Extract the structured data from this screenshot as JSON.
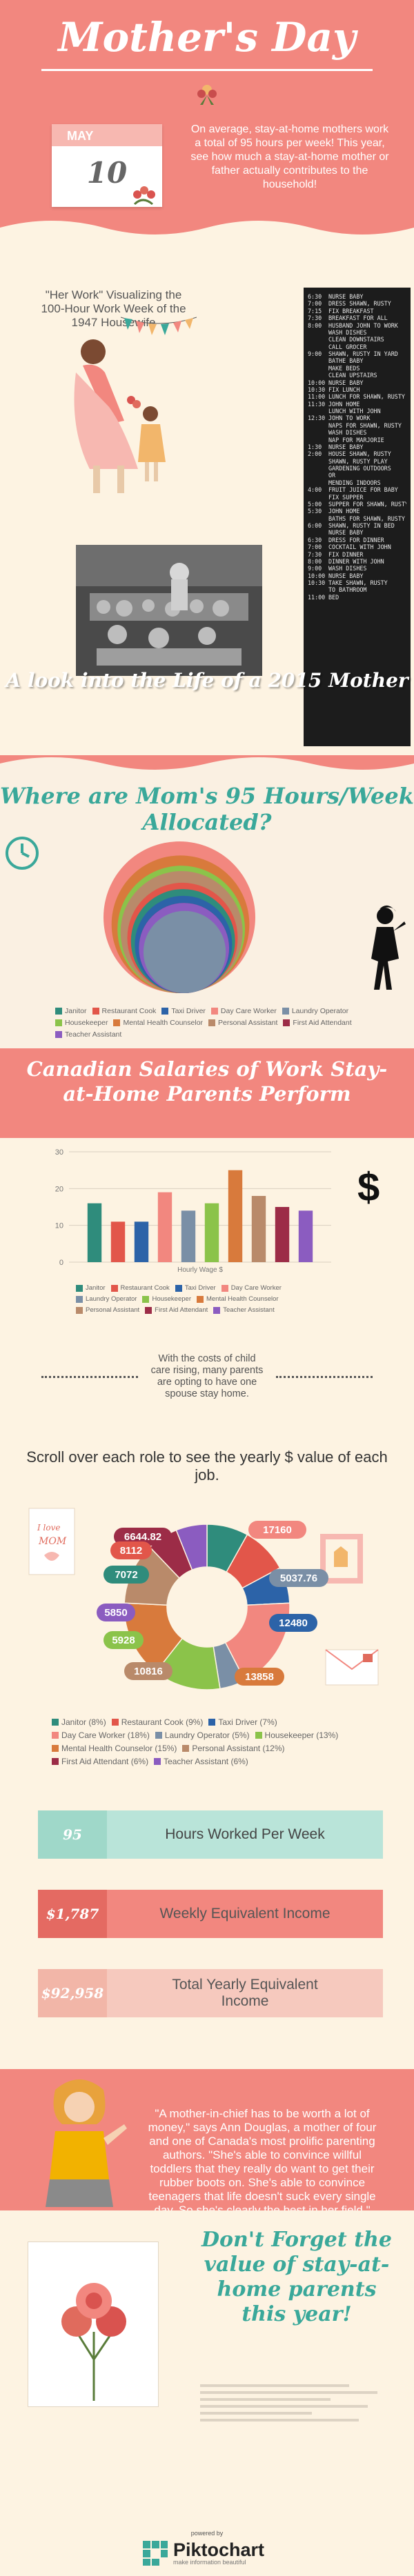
{
  "header": {
    "title": "Mother's Day",
    "calendar_month": "MAY",
    "calendar_day": "10",
    "intro": "On average, stay-at-home mothers work a total of 95 hours per week! This year, see how much a stay-at-home mother or father actually contributes to the household!"
  },
  "workweek": {
    "caption": "\"Her Work\" Visualizing the 100-Hour Work Week of the 1947 Housewife",
    "schedule": [
      {
        "t": "6:30",
        "a": "NURSE BABY"
      },
      {
        "t": "7:00",
        "a": "DRESS SHAWN, RUSTY"
      },
      {
        "t": "7:15",
        "a": "FIX BREAKFAST"
      },
      {
        "t": "7:30",
        "a": "BREAKFAST FOR ALL"
      },
      {
        "t": "8:00",
        "a": "HUSBAND JOHN TO WORK"
      },
      {
        "t": "",
        "a": "WASH DISHES"
      },
      {
        "t": "",
        "a": "CLEAN DOWNSTAIRS"
      },
      {
        "t": "",
        "a": "CALL GROCER"
      },
      {
        "t": "9:00",
        "a": "SHAWN, RUSTY IN YARD"
      },
      {
        "t": "",
        "a": "BATHE BABY"
      },
      {
        "t": "",
        "a": "MAKE BEDS"
      },
      {
        "t": "",
        "a": "CLEAN UPSTAIRS"
      },
      {
        "t": "10:00",
        "a": "NURSE BABY"
      },
      {
        "t": "10:30",
        "a": "FIX LUNCH"
      },
      {
        "t": "11:00",
        "a": "LUNCH FOR SHAWN, RUSTY"
      },
      {
        "t": "11:30",
        "a": "JOHN HOME"
      },
      {
        "t": "",
        "a": "LUNCH WITH JOHN"
      },
      {
        "t": "12:30",
        "a": "JOHN TO WORK"
      },
      {
        "t": "",
        "a": "NAPS FOR SHAWN, RUSTY"
      },
      {
        "t": "",
        "a": "WASH DISHES"
      },
      {
        "t": "",
        "a": "NAP FOR MARJORIE"
      },
      {
        "t": "1:30",
        "a": "NURSE BABY"
      },
      {
        "t": "2:00",
        "a": "HOUSE SHAWN, RUSTY"
      },
      {
        "t": "",
        "a": "SHAWN, RUSTY PLAY"
      },
      {
        "t": "",
        "a": "GARDENING OUTDOORS"
      },
      {
        "t": "",
        "a": "OR"
      },
      {
        "t": "",
        "a": "MENDING INDOORS"
      },
      {
        "t": "4:00",
        "a": "FRUIT JUICE FOR BABY"
      },
      {
        "t": "",
        "a": "FIX SUPPER"
      },
      {
        "t": "5:00",
        "a": "SUPPER FOR SHAWN, RUSTY"
      },
      {
        "t": "5:30",
        "a": "JOHN HOME"
      },
      {
        "t": "",
        "a": "BATHS FOR SHAWN, RUSTY"
      },
      {
        "t": "6:00",
        "a": "SHAWN, RUSTY IN BED"
      },
      {
        "t": "",
        "a": "NURSE BABY"
      },
      {
        "t": "6:30",
        "a": "DRESS FOR DINNER"
      },
      {
        "t": "7:00",
        "a": "COCKTAIL WITH JOHN"
      },
      {
        "t": "7:30",
        "a": "FIX DINNER"
      },
      {
        "t": "8:00",
        "a": "DINNER WITH JOHN"
      },
      {
        "t": "9:00",
        "a": "WASH DISHES"
      },
      {
        "t": "10:00",
        "a": "NURSE BABY"
      },
      {
        "t": "10:30",
        "a": "TAKE SHAWN, RUSTY"
      },
      {
        "t": "",
        "a": "TO BATHROOM"
      },
      {
        "t": "11:00",
        "a": "BED"
      }
    ],
    "banner": "A look into the Life of a 2015 Mother"
  },
  "allocation": {
    "title": "Where are Mom's 95 Hours/Week Allocated?",
    "legend": [
      "Janitor",
      "Restaurant Cook",
      "Taxi Driver",
      "Day Care Worker",
      "Laundry Operator",
      "Housekeeper",
      "Mental Health Counselor",
      "Personal Assistant",
      "First Aid Attendant",
      "Teacher Assistant"
    ]
  },
  "salary": {
    "title": "Canadian Salaries of Work Stay-at-Home Parents Perform",
    "xlabel": "Hourly Wage $"
  },
  "childcare": {
    "text": "With the costs of child care rising, many parents are opting to have one spouse stay home."
  },
  "donut": {
    "instruction": "Scroll over each role to see the yearly $ value of each job.",
    "labels": [
      "6644.82",
      "8112",
      "17160",
      "7072",
      "5037.76",
      "5850",
      "12480",
      "5928",
      "10816",
      "13858"
    ],
    "legend": [
      "Janitor (8%)",
      "Restaurant Cook (9%)",
      "Taxi Driver (7%)",
      "Day Care Worker (18%)",
      "Laundry Operator (5%)",
      "Housekeeper (13%)",
      "Mental Health Counselor (15%)",
      "Personal Assistant (12%)",
      "First Aid Attendant (6%)",
      "Teacher Assistant (6%)"
    ]
  },
  "stats": [
    {
      "value": "95",
      "label": "Hours Worked Per Week"
    },
    {
      "value": "$1,787",
      "label": "Weekly Equivalent Income"
    },
    {
      "value": "$92,958",
      "label": "Total Yearly Equivalent Income"
    }
  ],
  "quote": {
    "text": "\"A mother-in-chief has to be worth a lot of money,\" says Ann Douglas, a mother of four and one of Canada's most prolific parenting authors. \"She's able to convince willful toddlers that they really do want to get their rubber boots on. She's able to convince teenagers that life doesn't suck every single day. So she's clearly the best in her field.\""
  },
  "closing": {
    "text": "Don't Forget the value of stay-at-home parents this year!"
  },
  "footer": {
    "powered_by": "powered by",
    "brand": "Piktochart",
    "tagline": "make information beautiful"
  },
  "colors": {
    "coral": "#f2877f",
    "teal": "#3aa89a",
    "cream": "#fdf3e2",
    "janitor": "#2f8c7c",
    "restaurant_cook": "#e2564a",
    "taxi_driver": "#2c63a8",
    "day_care_worker": "#f2877f",
    "laundry_operator": "#7a8fa6",
    "housekeeper": "#8bc34a",
    "mental_health": "#d87a3c",
    "personal_assistant": "#b98a6a",
    "first_aid": "#9c2c47",
    "teacher_assistant": "#8b5cc0"
  },
  "chart_data": [
    {
      "type": "area",
      "title": "Where are Mom's 95 Hours/Week Allocated?",
      "note": "Nested circles, areas proportional to hours; largest at back",
      "series": [
        {
          "name": "Day Care Worker",
          "value": 17
        },
        {
          "name": "Mental Health Counselor",
          "value": 14
        },
        {
          "name": "Housekeeper",
          "value": 12
        },
        {
          "name": "Personal Assistant",
          "value": 11
        },
        {
          "name": "Restaurant Cook",
          "value": 9
        },
        {
          "name": "Janitor",
          "value": 8
        },
        {
          "name": "Taxi Driver",
          "value": 7
        },
        {
          "name": "First Aid Attendant",
          "value": 6
        },
        {
          "name": "Teacher Assistant",
          "value": 6
        },
        {
          "name": "Laundry Operator",
          "value": 5
        }
      ]
    },
    {
      "type": "bar",
      "title": "Canadian Salaries of Work Stay-at-Home Parents Perform",
      "xlabel": "Hourly Wage $",
      "ylim": [
        0,
        30
      ],
      "yticks": [
        0,
        10,
        20,
        30
      ],
      "grid": true,
      "categories": [
        "Janitor",
        "Restaurant Cook",
        "Taxi Driver",
        "Day Care Worker",
        "Laundry Operator",
        "Housekeeper",
        "Mental Health Counselor",
        "Personal Assistant",
        "First Aid Attendant",
        "Teacher Assistant"
      ],
      "values": [
        16,
        11,
        11,
        19,
        14,
        16,
        25,
        18,
        15,
        14
      ]
    },
    {
      "type": "pie",
      "donut": true,
      "categories": [
        "Janitor",
        "Restaurant Cook",
        "Taxi Driver",
        "Day Care Worker",
        "Laundry Operator",
        "Housekeeper",
        "Mental Health Counselor",
        "Personal Assistant",
        "First Aid Attendant",
        "Teacher Assistant"
      ],
      "percents": [
        8,
        9,
        7,
        18,
        5,
        13,
        15,
        12,
        6,
        6
      ],
      "values": [
        7072,
        8112,
        6644.82,
        17160,
        5037.76,
        12480,
        13858,
        10816,
        5928,
        5850
      ]
    }
  ]
}
